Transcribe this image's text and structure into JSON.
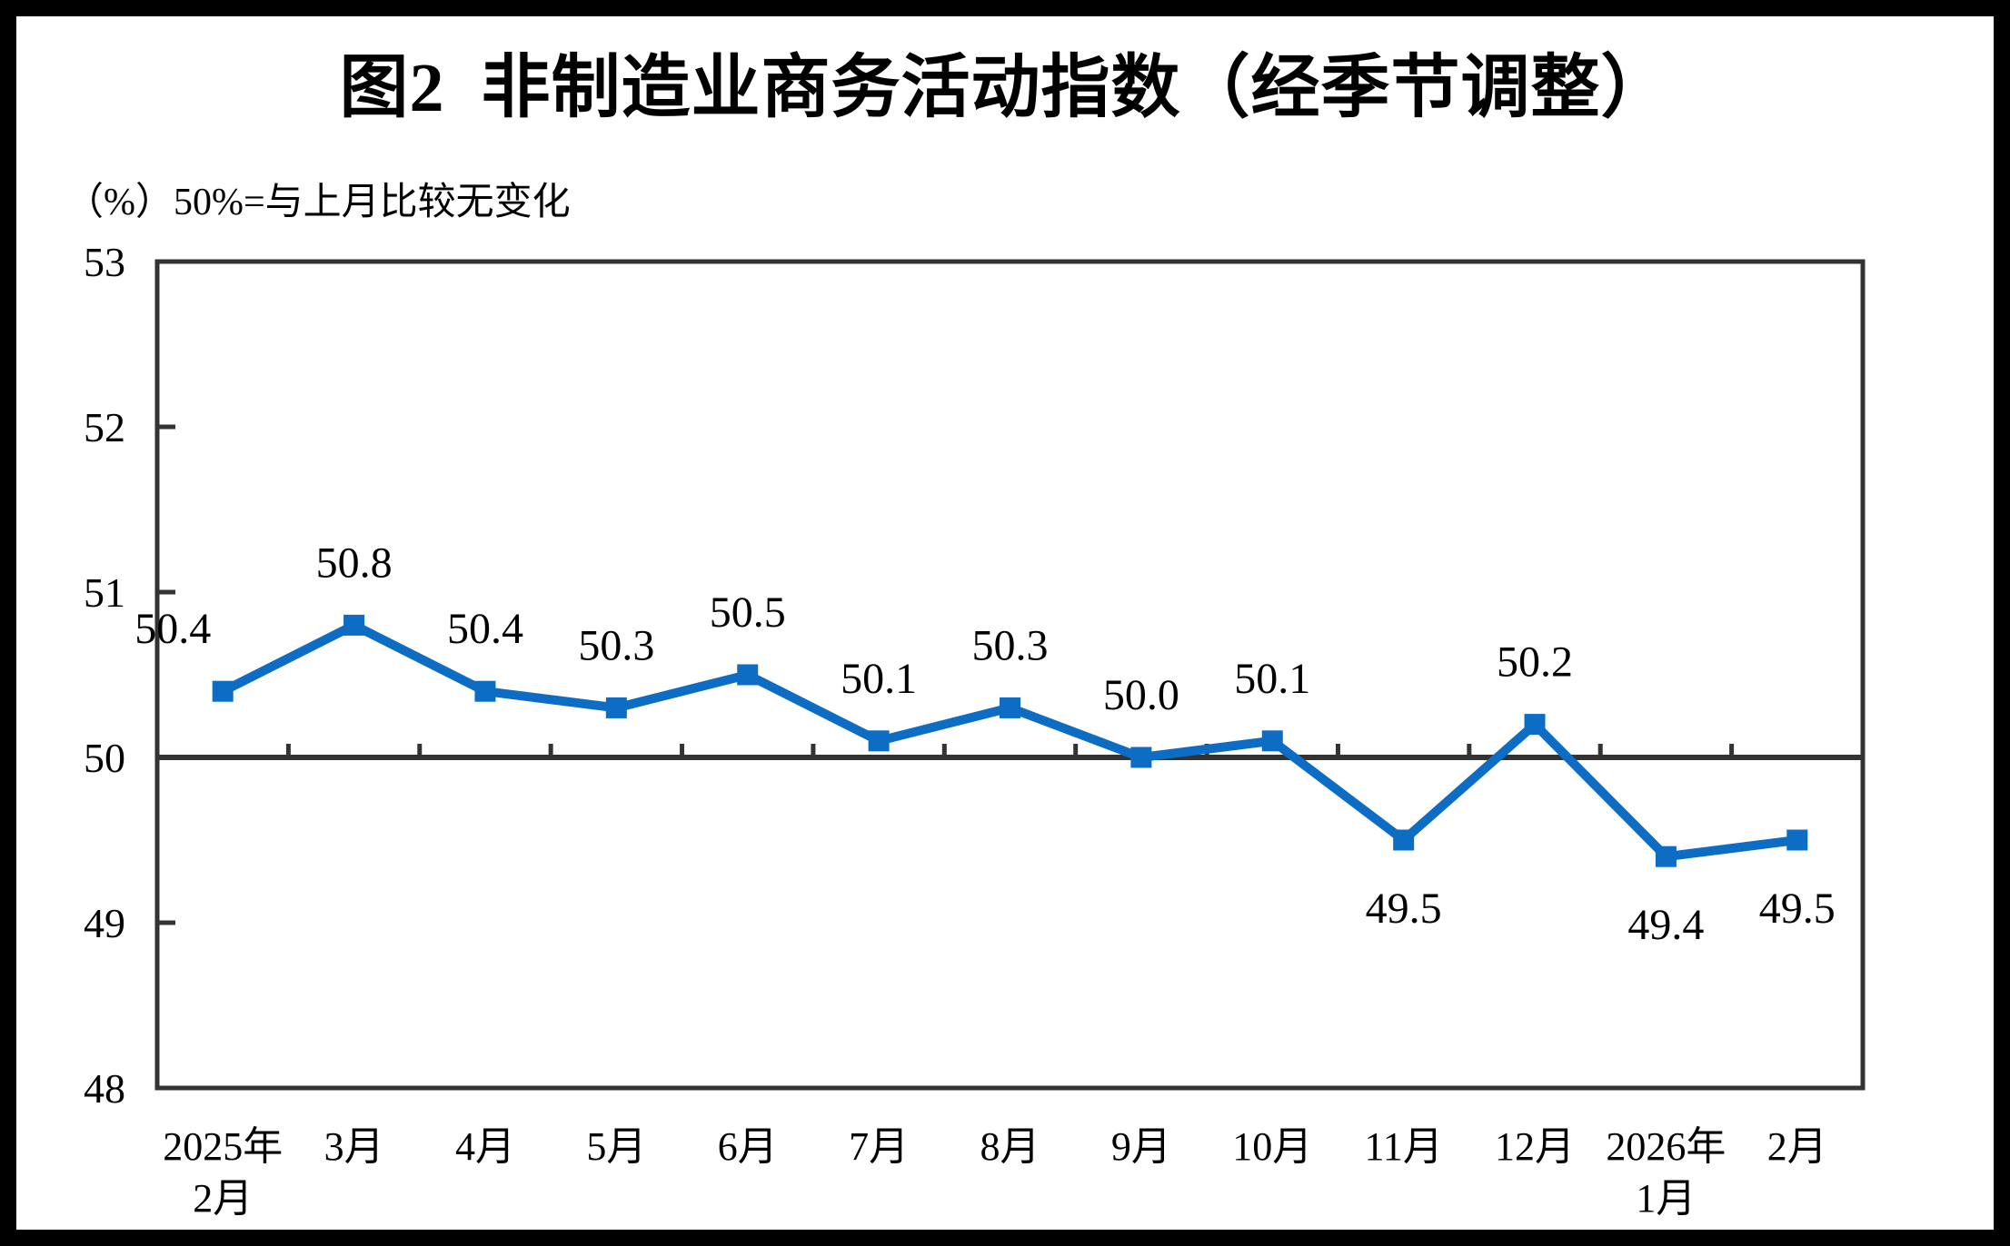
{
  "page": {
    "title": "图2  非制造业商务活动指数（经季节调整）",
    "unit_note": "（%）50%=与上月比较无变化"
  },
  "chart_data": {
    "type": "line",
    "title": "图2 非制造业商务活动指数（经季节调整）",
    "subtitle": "（%）50%=与上月比较无变化",
    "xlabel": "",
    "ylabel": "%",
    "categories": [
      "2025年\n2月",
      "3月",
      "4月",
      "5月",
      "6月",
      "7月",
      "8月",
      "9月",
      "10月",
      "11月",
      "12月",
      "2026年\n1月",
      "2月"
    ],
    "series": [
      {
        "name": "非制造业商务活动指数（经季节调整）",
        "values": [
          50.4,
          50.8,
          50.4,
          50.3,
          50.5,
          50.1,
          50.3,
          50.0,
          50.1,
          49.5,
          50.2,
          49.4,
          49.5
        ]
      }
    ],
    "data_labels": [
      "50.4",
      "50.8",
      "50.4",
      "50.3",
      "50.5",
      "50.1",
      "50.3",
      "50.0",
      "50.1",
      "49.5",
      "50.2",
      "49.4",
      "49.5"
    ],
    "label_positions": [
      "above",
      "above",
      "above",
      "above",
      "above",
      "above",
      "above",
      "above",
      "above",
      "below",
      "above",
      "below",
      "below"
    ],
    "label_dx": [
      -55,
      0,
      0,
      0,
      0,
      0,
      0,
      0,
      0,
      0,
      0,
      0,
      0
    ],
    "ylim": [
      48,
      53
    ],
    "yticks": [
      48,
      49,
      50,
      51,
      52,
      53
    ],
    "reference_line": 50,
    "reference_note": "50%=与上月比较无变化",
    "grid": "off",
    "legend": "none",
    "marker": "square",
    "colors": {
      "series": "#0D6CC4",
      "axis": "#333333",
      "text": "#000000",
      "frame": "#000000",
      "background": "#FFFFFF"
    }
  }
}
